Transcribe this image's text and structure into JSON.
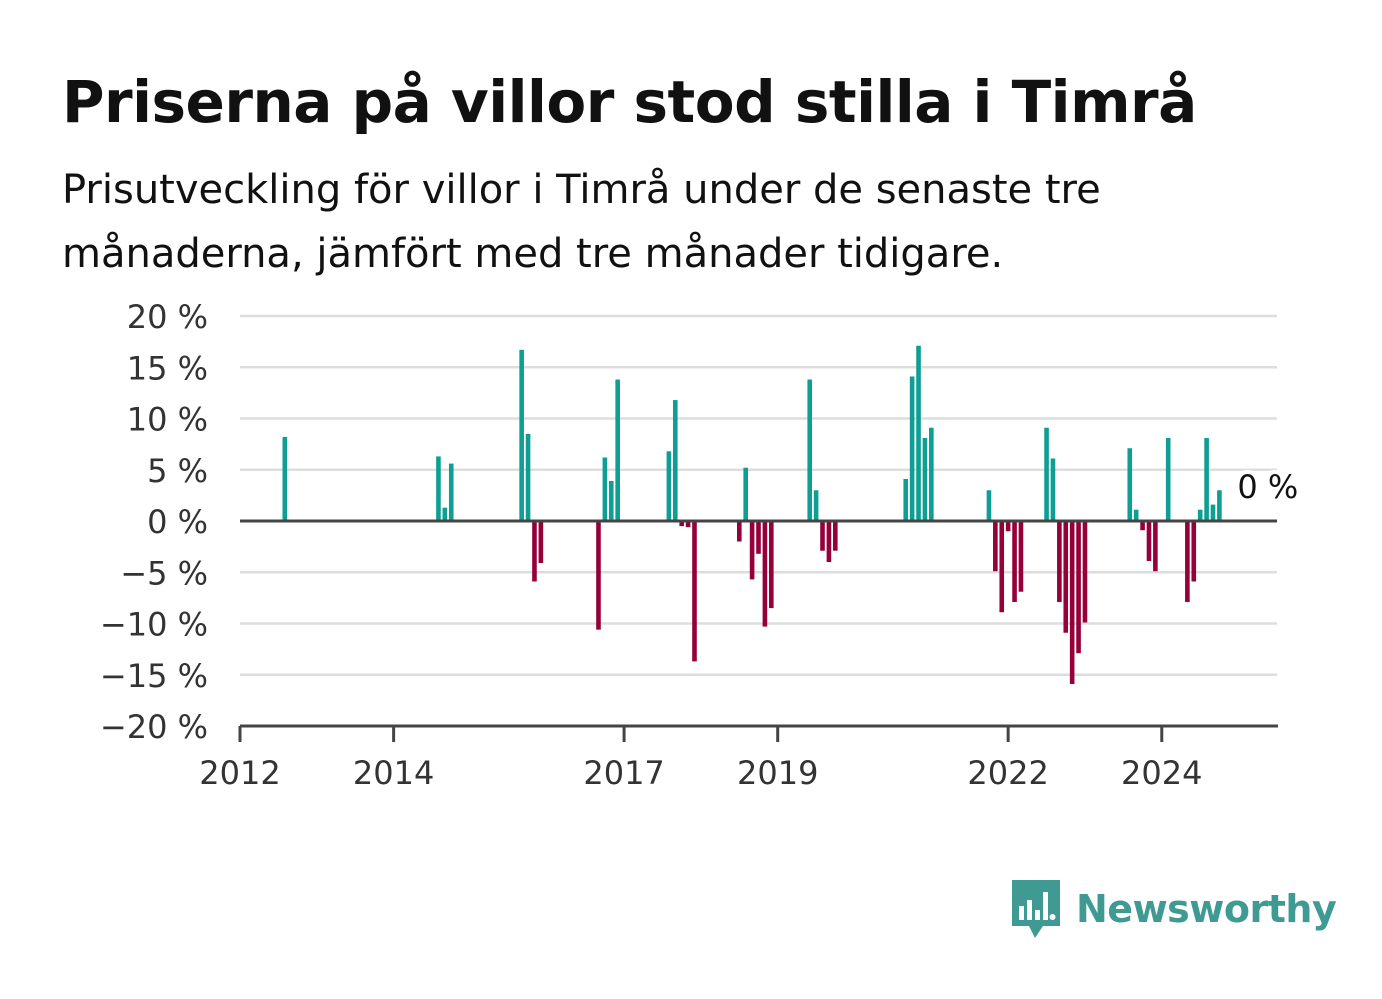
{
  "title": "Priserna på villor stod stilla i Timrå",
  "subtitle": "Prisutveckling för villor i Timrå under de senaste tre månaderna, jämfört med tre månader tidigare.",
  "brand": {
    "name": "Newsworthy",
    "color": "#3f9a93"
  },
  "colors": {
    "positive": "#0e9e93",
    "negative": "#96003a",
    "grid": "#dddddd",
    "axis": "#444444",
    "text": "#333333"
  },
  "chart_data": {
    "type": "bar",
    "title": "Priserna på villor stod stilla i Timrå",
    "xlabel": "",
    "ylabel": "",
    "ylim": [
      -20,
      20
    ],
    "xlim": [
      "2012-01",
      "2025-07"
    ],
    "y_ticks": [
      20,
      15,
      10,
      5,
      0,
      -5,
      -10,
      -15,
      -20
    ],
    "y_tick_labels": [
      "20 %",
      "15 %",
      "10 %",
      "5 %",
      "0 %",
      "−5 %",
      "−10 %",
      "−15 %",
      "−20 %"
    ],
    "x_ticks": [
      "2012-01",
      "2014-01",
      "2017-01",
      "2019-01",
      "2022-01",
      "2024-01"
    ],
    "x_tick_labels": [
      "2012",
      "2014",
      "2017",
      "2019",
      "2022",
      "2024"
    ],
    "grid": true,
    "annotation": {
      "text": "0 %",
      "x": "2025-04"
    },
    "series": [
      {
        "x": [
          "2012-08",
          "2014-08",
          "2014-09",
          "2014-10",
          "2015-09",
          "2015-10",
          "2015-11",
          "2015-12",
          "2016-09",
          "2016-10",
          "2016-11",
          "2016-12",
          "2017-08",
          "2017-09",
          "2017-10",
          "2017-11",
          "2017-12",
          "2018-07",
          "2018-08",
          "2018-09",
          "2018-10",
          "2018-11",
          "2018-12",
          "2019-06",
          "2019-07",
          "2019-08",
          "2019-09",
          "2019-10",
          "2020-09",
          "2020-10",
          "2020-11",
          "2020-12",
          "2021-01",
          "2021-10",
          "2021-11",
          "2021-12",
          "2022-01",
          "2022-02",
          "2022-03",
          "2022-07",
          "2022-08",
          "2022-09",
          "2022-10",
          "2022-11",
          "2022-12",
          "2023-01",
          "2023-02",
          "2023-08",
          "2023-09",
          "2023-10",
          "2023-11",
          "2023-12",
          "2024-02",
          "2024-05",
          "2024-06",
          "2024-07",
          "2024-08",
          "2024-09",
          "2024-10"
        ],
        "values": [
          8.2,
          6.3,
          1.3,
          5.6,
          16.7,
          8.5,
          -5.9,
          -4.1,
          -10.6,
          6.2,
          3.9,
          13.8,
          6.8,
          11.8,
          -0.5,
          -0.6,
          -13.7,
          -2.0,
          5.2,
          -5.7,
          -3.2,
          -10.3,
          -8.5,
          13.8,
          3.0,
          -2.9,
          -4.0,
          -2.9,
          4.1,
          14.1,
          17.1,
          8.1,
          9.1,
          3.0,
          -4.9,
          -8.9,
          -1.0,
          -7.9,
          -6.9,
          9.1,
          6.1,
          -7.9,
          -10.9,
          -15.9,
          -12.9,
          -9.9,
          0,
          7.1,
          1.1,
          -0.9,
          -3.9,
          -4.9,
          8.1,
          -7.9,
          -5.9,
          1.1,
          8.1,
          1.6,
          3.0
        ]
      }
    ]
  }
}
